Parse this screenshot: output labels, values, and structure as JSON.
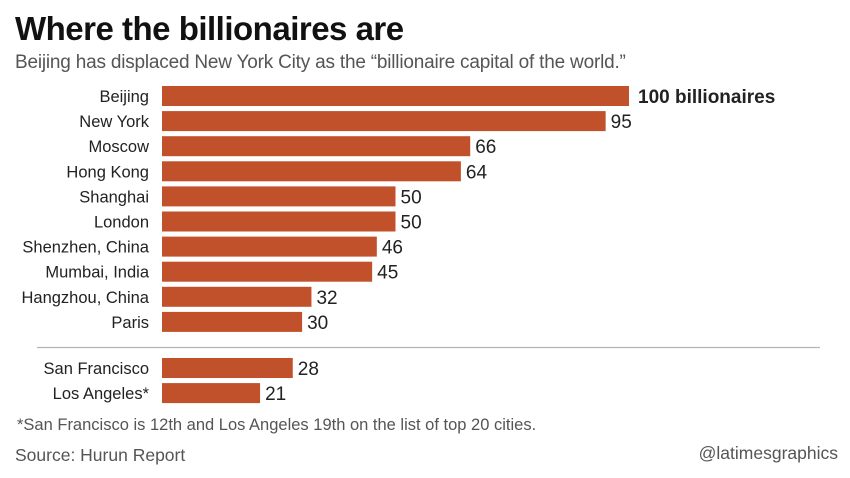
{
  "chart_data": {
    "type": "bar",
    "orientation": "horizontal",
    "title": "Where the billionaires are",
    "subtitle": "Beijing has displaced New York City as the “billionaire capital of the world.”",
    "xlabel": "",
    "ylabel": "",
    "xlim": [
      0,
      100
    ],
    "grid": false,
    "bar_color": "#c0512b",
    "top_group": {
      "categories": [
        "Beijing",
        "New York",
        "Moscow",
        "Hong Kong",
        "Shanghai",
        "London",
        "Shenzhen, China",
        "Mumbai, India",
        "Hangzhou, China",
        "Paris"
      ],
      "values": [
        100,
        95,
        66,
        64,
        50,
        50,
        46,
        45,
        32,
        30
      ],
      "value_labels": [
        "100 billionaires",
        "95",
        "66",
        "64",
        "50",
        "50",
        "46",
        "45",
        "32",
        "30"
      ]
    },
    "bottom_group": {
      "categories": [
        "San Francisco",
        "Los Angeles*"
      ],
      "values": [
        28,
        21
      ],
      "value_labels": [
        "28",
        "21"
      ]
    },
    "footnote": "*San Francisco is 12th and Los Angeles 19th on the list of top 20 cities.",
    "source": "Source: Hurun Report",
    "credit": "@latimesgraphics"
  }
}
